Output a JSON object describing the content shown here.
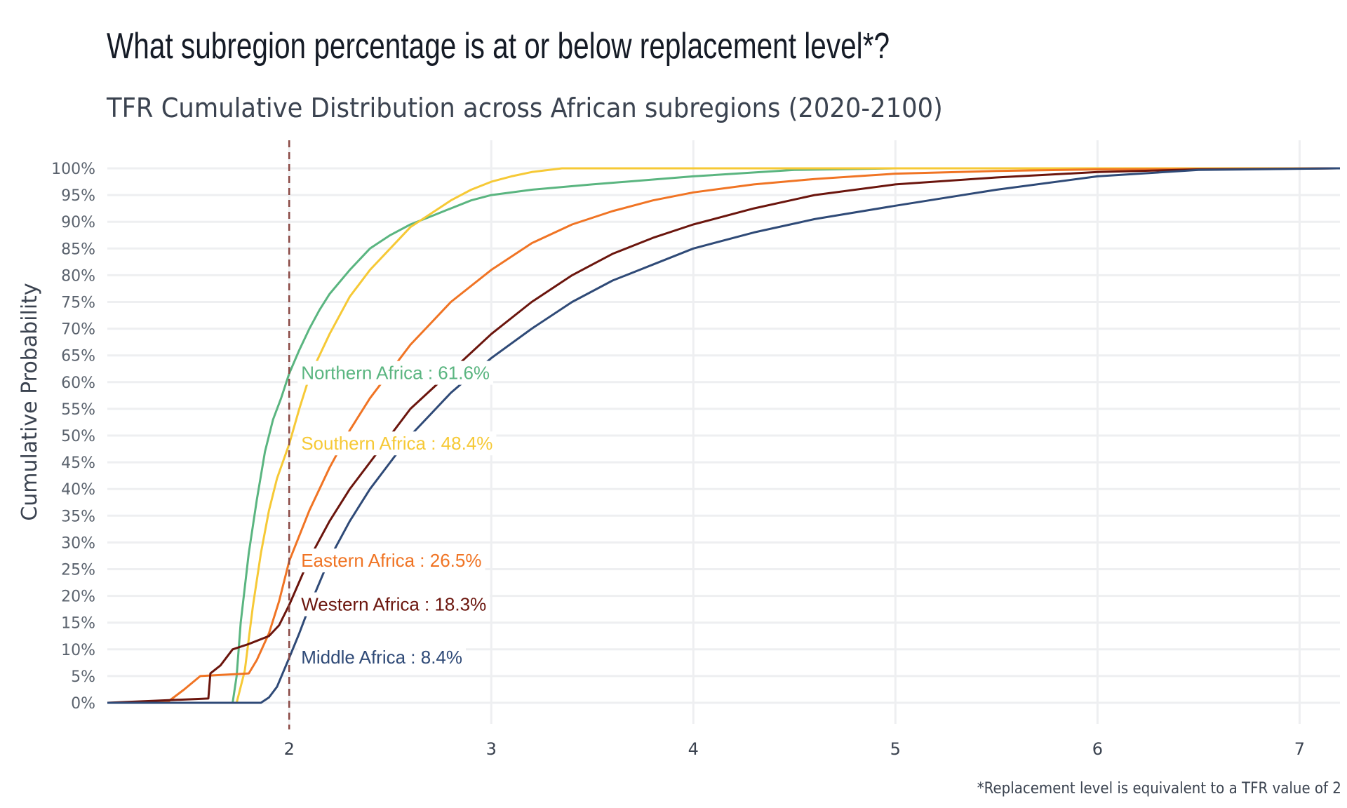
{
  "header": {
    "title": "What subregion percentage is at or below replacement level*?",
    "subtitle": "TFR Cumulative Distribution across African subregions (2020-2100)"
  },
  "caption": "*Replacement level is equivalent to a TFR value of 2",
  "chart_data": {
    "type": "line",
    "title": "What subregion percentage is at or below replacement level*?",
    "subtitle": "TFR Cumulative Distribution across African subregions (2020-2100)",
    "xlabel": "",
    "ylabel": "Cumulative Probability",
    "xlim": [
      1.1,
      7.2
    ],
    "ylim": [
      0,
      1
    ],
    "x_ticks": [
      2,
      3,
      4,
      5,
      6,
      7
    ],
    "x_tick_labels": [
      "2",
      "3",
      "4",
      "5",
      "6",
      "7"
    ],
    "y_ticks": [
      0,
      0.05,
      0.1,
      0.15,
      0.2,
      0.25,
      0.3,
      0.35,
      0.4,
      0.45,
      0.5,
      0.55,
      0.6,
      0.65,
      0.7,
      0.75,
      0.8,
      0.85,
      0.9,
      0.95,
      1.0
    ],
    "y_tick_labels": [
      "0%",
      "5%",
      "10%",
      "15%",
      "20%",
      "25%",
      "30%",
      "35%",
      "40%",
      "45%",
      "50%",
      "55%",
      "60%",
      "65%",
      "70%",
      "75%",
      "80%",
      "85%",
      "90%",
      "95%",
      "100%"
    ],
    "grid": true,
    "legend": "none",
    "reference_line": {
      "x": 2,
      "style": "dashed",
      "color": "#8b4a45"
    },
    "series": [
      {
        "name": "Northern Africa",
        "color": "#5ab580",
        "annotation": "Northern Africa : 61.6%",
        "value_at_2": 0.616,
        "x": [
          1.1,
          1.72,
          1.74,
          1.76,
          1.8,
          1.84,
          1.88,
          1.92,
          1.96,
          2.0,
          2.05,
          2.1,
          2.15,
          2.2,
          2.3,
          2.4,
          2.5,
          2.6,
          2.7,
          2.8,
          2.9,
          3.0,
          3.2,
          3.5,
          4.0,
          4.5,
          5.0,
          6.0,
          7.2
        ],
        "y": [
          0.0,
          0.0,
          0.05,
          0.15,
          0.28,
          0.38,
          0.47,
          0.53,
          0.57,
          0.616,
          0.66,
          0.7,
          0.735,
          0.765,
          0.81,
          0.85,
          0.875,
          0.895,
          0.91,
          0.925,
          0.94,
          0.95,
          0.96,
          0.97,
          0.985,
          0.997,
          1.0,
          1.0,
          1.0
        ]
      },
      {
        "name": "Southern Africa",
        "color": "#f6c936",
        "annotation": "Southern Africa : 48.4%",
        "value_at_2": 0.484,
        "x": [
          1.1,
          1.74,
          1.78,
          1.82,
          1.86,
          1.9,
          1.94,
          2.0,
          2.05,
          2.1,
          2.2,
          2.3,
          2.4,
          2.5,
          2.6,
          2.7,
          2.8,
          2.9,
          3.0,
          3.1,
          3.2,
          3.35,
          4.0,
          7.2
        ],
        "y": [
          0.0,
          0.0,
          0.06,
          0.18,
          0.28,
          0.36,
          0.42,
          0.484,
          0.55,
          0.61,
          0.69,
          0.76,
          0.81,
          0.85,
          0.89,
          0.915,
          0.94,
          0.96,
          0.975,
          0.985,
          0.993,
          1.0,
          1.0,
          1.0
        ]
      },
      {
        "name": "Eastern Africa",
        "color": "#f07424",
        "annotation": "Eastern Africa : 26.5%",
        "value_at_2": 0.265,
        "x": [
          1.1,
          1.4,
          1.48,
          1.56,
          1.8,
          1.84,
          1.9,
          1.95,
          2.0,
          2.1,
          2.2,
          2.3,
          2.4,
          2.5,
          2.6,
          2.7,
          2.8,
          3.0,
          3.2,
          3.4,
          3.6,
          3.8,
          4.0,
          4.3,
          4.6,
          5.0,
          5.5,
          6.0,
          7.2
        ],
        "y": [
          0.0,
          0.002,
          0.025,
          0.05,
          0.055,
          0.08,
          0.13,
          0.19,
          0.265,
          0.36,
          0.44,
          0.51,
          0.57,
          0.62,
          0.67,
          0.71,
          0.75,
          0.81,
          0.86,
          0.895,
          0.92,
          0.94,
          0.955,
          0.97,
          0.98,
          0.99,
          0.995,
          0.998,
          1.0
        ]
      },
      {
        "name": "Western Africa",
        "color": "#6b150d",
        "annotation": "Western Africa : 18.3%",
        "value_at_2": 0.183,
        "x": [
          1.1,
          1.6,
          1.61,
          1.66,
          1.72,
          1.8,
          1.9,
          1.95,
          2.0,
          2.1,
          2.2,
          2.3,
          2.4,
          2.5,
          2.6,
          2.8,
          3.0,
          3.2,
          3.4,
          3.6,
          3.8,
          4.0,
          4.3,
          4.6,
          5.0,
          5.5,
          6.0,
          6.5,
          7.2
        ],
        "y": [
          0.0,
          0.008,
          0.055,
          0.07,
          0.1,
          0.11,
          0.125,
          0.145,
          0.183,
          0.27,
          0.34,
          0.4,
          0.45,
          0.5,
          0.55,
          0.62,
          0.69,
          0.75,
          0.8,
          0.84,
          0.87,
          0.895,
          0.925,
          0.95,
          0.97,
          0.983,
          0.993,
          0.998,
          1.0
        ]
      },
      {
        "name": "Middle Africa",
        "color": "#2f4a77",
        "annotation": "Middle Africa : 8.4%",
        "value_at_2": 0.084,
        "x": [
          1.1,
          1.86,
          1.9,
          1.94,
          2.0,
          2.05,
          2.1,
          2.2,
          2.3,
          2.4,
          2.5,
          2.6,
          2.7,
          2.8,
          3.0,
          3.2,
          3.4,
          3.6,
          3.8,
          4.0,
          4.3,
          4.6,
          5.0,
          5.5,
          6.0,
          6.5,
          7.2
        ],
        "y": [
          0.0,
          0.0,
          0.01,
          0.03,
          0.084,
          0.13,
          0.18,
          0.27,
          0.34,
          0.4,
          0.45,
          0.5,
          0.54,
          0.58,
          0.645,
          0.7,
          0.75,
          0.79,
          0.82,
          0.85,
          0.88,
          0.905,
          0.93,
          0.96,
          0.985,
          0.997,
          1.0
        ]
      }
    ]
  }
}
